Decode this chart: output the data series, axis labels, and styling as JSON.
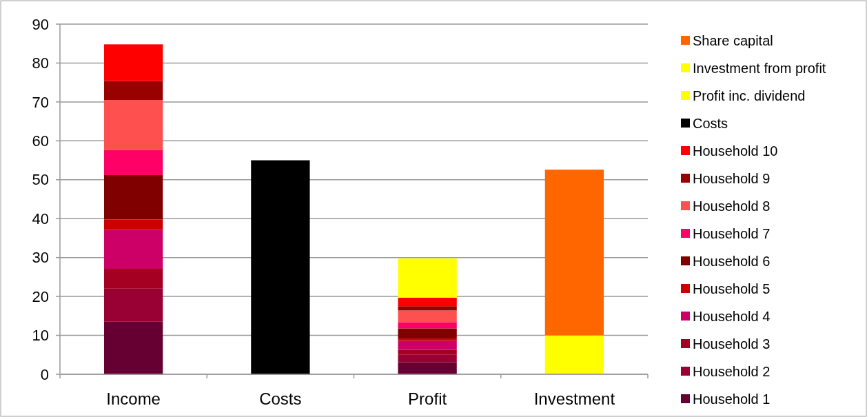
{
  "chart_data": {
    "type": "bar",
    "stacked": true,
    "categories": [
      "Income",
      "Costs",
      "Profit",
      "Investment"
    ],
    "ylim": [
      0,
      90
    ],
    "yticks": [
      0,
      10,
      20,
      30,
      40,
      50,
      60,
      70,
      80,
      90
    ],
    "grid": "y",
    "legend": "right",
    "series": [
      {
        "name": "Household 1",
        "color": "#660033",
        "values": [
          13.5,
          null,
          3.1,
          null
        ]
      },
      {
        "name": "Household 2",
        "color": "#990033",
        "values": [
          8.5,
          null,
          2.0,
          null
        ]
      },
      {
        "name": "Household 3",
        "color": "#a50021",
        "values": [
          5.1,
          null,
          1.2,
          null
        ]
      },
      {
        "name": "Household 4",
        "color": "#cc0066",
        "values": [
          10.0,
          null,
          2.3,
          null
        ]
      },
      {
        "name": "Household 5",
        "color": "#cc0000",
        "values": [
          2.7,
          null,
          0.6,
          null
        ]
      },
      {
        "name": "Household 6",
        "color": "#800000",
        "values": [
          11.4,
          null,
          2.6,
          null
        ]
      },
      {
        "name": "Household 7",
        "color": "#ff0066",
        "values": [
          6.4,
          null,
          1.6,
          null
        ]
      },
      {
        "name": "Household 8",
        "color": "#ff5050",
        "values": [
          12.9,
          null,
          3.0,
          null
        ]
      },
      {
        "name": "Household 9",
        "color": "#990000",
        "values": [
          4.9,
          null,
          1.1,
          null
        ]
      },
      {
        "name": "Household 10",
        "color": "#ff0000",
        "values": [
          9.4,
          null,
          2.2,
          null
        ]
      },
      {
        "name": "Costs",
        "color": "#000000",
        "values": [
          null,
          55.0,
          null,
          null
        ]
      },
      {
        "name": "Profit inc. dividend",
        "color": "#ffff00",
        "values": [
          null,
          null,
          10.1,
          null
        ]
      },
      {
        "name": "Investment from profit",
        "color": "#ffff00",
        "values": [
          null,
          null,
          null,
          10.0
        ]
      },
      {
        "name": "Share capital",
        "color": "#ff6600",
        "values": [
          null,
          null,
          null,
          42.6
        ]
      }
    ]
  }
}
